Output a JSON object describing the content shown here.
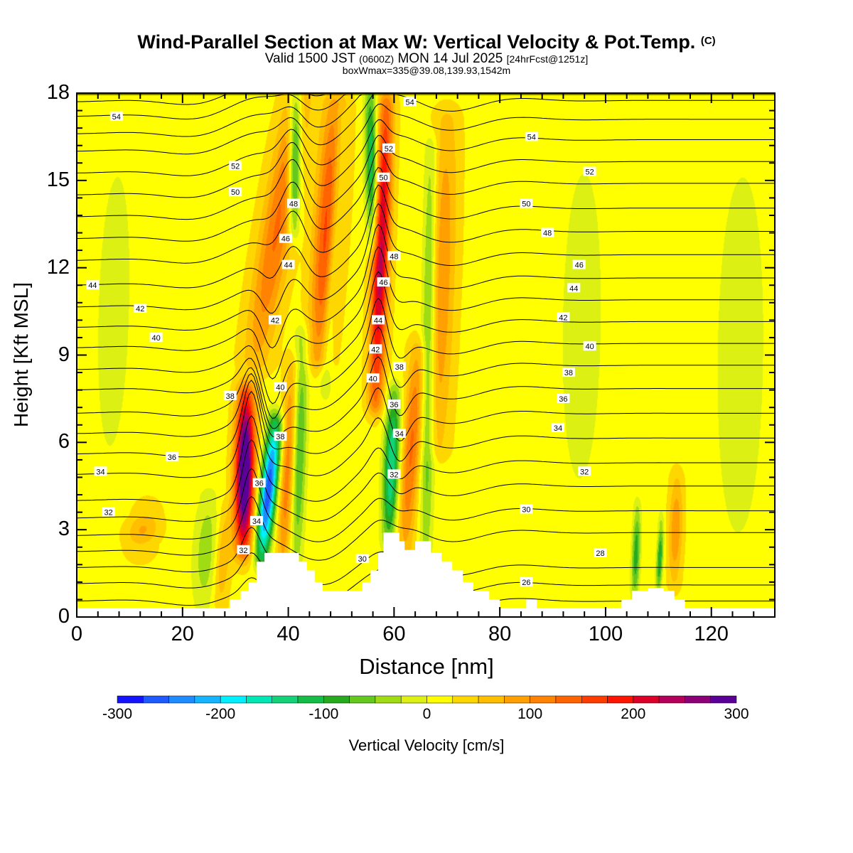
{
  "title": {
    "main": "Wind-Parallel Section at Max W: Vertical Velocity & Pot.Temp.",
    "copyright": "(C)",
    "valid_prefix": "Valid 1500 JST",
    "valid_utc": "(0600Z)",
    "valid_date": "MON 14 Jul 2025",
    "forecast": "[24hrFcst@1251z]",
    "boxmax": "boxWmax=335@39.08,139.93,1542m"
  },
  "chart_data": {
    "type": "heatmap",
    "xlabel": "Distance [nm]",
    "ylabel": "Height [Kft MSL]",
    "xlim": [
      0,
      132
    ],
    "ylim": [
      0,
      18
    ],
    "x_ticks": [
      0,
      20,
      40,
      60,
      80,
      100,
      120
    ],
    "y_ticks": [
      0,
      3,
      6,
      9,
      12,
      15,
      18
    ],
    "colorbar": {
      "label": "Vertical Velocity [cm/s]",
      "range": [
        -300,
        300
      ],
      "tick_labels": [
        "-300",
        "-200",
        "-100",
        "0",
        "100",
        "200",
        "300"
      ],
      "colors": [
        "#1414ff",
        "#1e5aff",
        "#1e8cff",
        "#14b4ff",
        "#00f0ff",
        "#00e6b4",
        "#14d278",
        "#14be46",
        "#28aa1e",
        "#64c81e",
        "#a0dc14",
        "#dcf014",
        "#ffff00",
        "#ffd700",
        "#ffbe00",
        "#ffa000",
        "#ff8200",
        "#ff6400",
        "#ff3c00",
        "#ff1400",
        "#dc0028",
        "#b4005a",
        "#8c0078",
        "#5a0096"
      ]
    },
    "terrain": [
      [
        0,
        0.3
      ],
      [
        29,
        0.3
      ],
      [
        29,
        0.6
      ],
      [
        31,
        0.6
      ],
      [
        31,
        0.9
      ],
      [
        32.5,
        0.9
      ],
      [
        32.5,
        1.2
      ],
      [
        34,
        1.2
      ],
      [
        34,
        1.9
      ],
      [
        35.5,
        1.9
      ],
      [
        35.5,
        2.2
      ],
      [
        42,
        2.2
      ],
      [
        42,
        1.9
      ],
      [
        43.5,
        1.9
      ],
      [
        43.5,
        1.6
      ],
      [
        45,
        1.6
      ],
      [
        45,
        1.2
      ],
      [
        46.5,
        1.2
      ],
      [
        46.5,
        0.9
      ],
      [
        54,
        0.9
      ],
      [
        54,
        1.2
      ],
      [
        55.5,
        1.2
      ],
      [
        55.5,
        1.6
      ],
      [
        57,
        1.6
      ],
      [
        57,
        2.2
      ],
      [
        58,
        2.2
      ],
      [
        58,
        2.9
      ],
      [
        61,
        2.9
      ],
      [
        61,
        2.6
      ],
      [
        62,
        2.6
      ],
      [
        62,
        2.3
      ],
      [
        64,
        2.3
      ],
      [
        64,
        2.6
      ],
      [
        67,
        2.6
      ],
      [
        67,
        2.2
      ],
      [
        69,
        2.2
      ],
      [
        69,
        1.9
      ],
      [
        71,
        1.9
      ],
      [
        71,
        1.6
      ],
      [
        73,
        1.6
      ],
      [
        73,
        1.2
      ],
      [
        75,
        1.2
      ],
      [
        75,
        0.9
      ],
      [
        78,
        0.9
      ],
      [
        78,
        0.6
      ],
      [
        80,
        0.6
      ],
      [
        80,
        0.3
      ],
      [
        85,
        0.3
      ],
      [
        85,
        0.6
      ],
      [
        87,
        0.6
      ],
      [
        87,
        0.3
      ],
      [
        103,
        0.3
      ],
      [
        103,
        0.6
      ],
      [
        105,
        0.6
      ],
      [
        105,
        0.9
      ],
      [
        108,
        0.9
      ],
      [
        108,
        1.0
      ],
      [
        111,
        1.0
      ],
      [
        111,
        0.9
      ],
      [
        113,
        0.9
      ],
      [
        113,
        0.6
      ],
      [
        115,
        0.6
      ],
      [
        115,
        0.3
      ],
      [
        132,
        0.3
      ]
    ],
    "w_features": [
      {
        "x": 31.5,
        "x_top": 32.0,
        "y0": 2.5,
        "y1": 7.5,
        "w": 320,
        "width": 1.8
      },
      {
        "x": 35.0,
        "x_top": 37.5,
        "y0": 2.2,
        "y1": 6.5,
        "w": -290,
        "width": 1.6
      },
      {
        "x": 39.0,
        "x_top": 41.0,
        "y0": 2.0,
        "y1": 8.5,
        "w": 110,
        "width": 1.5
      },
      {
        "x": 34.0,
        "x_top": 42.0,
        "y0": 9.0,
        "y1": 18.0,
        "w": 110,
        "width": 3.0
      },
      {
        "x": 41.5,
        "x_top": 42.5,
        "y0": 2.3,
        "y1": 9.5,
        "w": -110,
        "width": 1.4
      },
      {
        "x": 41.0,
        "x_top": 41.5,
        "y0": 13.5,
        "y1": 18.0,
        "w": -170,
        "width": 1.2
      },
      {
        "x": 46.0,
        "x_top": 49.0,
        "y0": 9.0,
        "y1": 17.5,
        "w": 150,
        "width": 2.5
      },
      {
        "x": 47.0,
        "x_top": 50.0,
        "y0": 8.0,
        "y1": 17.0,
        "w": -80,
        "width": 1.2
      },
      {
        "x": 56.5,
        "x_top": 58.5,
        "y0": 7.5,
        "y1": 17.5,
        "w": 220,
        "width": 1.6
      },
      {
        "x": 56.0,
        "x_top": 55.5,
        "y0": 13.0,
        "y1": 18.0,
        "w": -150,
        "width": 1.2
      },
      {
        "x": 59.0,
        "x_top": 60.0,
        "y0": 2.8,
        "y1": 7.5,
        "w": -170,
        "width": 1.5
      },
      {
        "x": 62.0,
        "x_top": 64.5,
        "y0": 2.5,
        "y1": 9.0,
        "w": 110,
        "width": 1.8
      },
      {
        "x": 66.0,
        "x_top": 67.0,
        "y0": 2.5,
        "y1": 16.0,
        "w": -100,
        "width": 1.3
      },
      {
        "x": 68.0,
        "x_top": 70.0,
        "y0": 6.0,
        "y1": 17.0,
        "w": 80,
        "width": 2.5
      },
      {
        "x": 24.0,
        "x_top": 25.0,
        "y0": 0.5,
        "y1": 4.0,
        "w": -60,
        "width": 2.5
      },
      {
        "x": 27.0,
        "x_top": 28.0,
        "y0": 0.5,
        "y1": 3.5,
        "w": 60,
        "width": 1.5
      },
      {
        "x": 12.0,
        "x_top": 13.0,
        "y0": 2.5,
        "y1": 3.5,
        "w": 60,
        "width": 3.0
      },
      {
        "x": 105.5,
        "x_top": 106.0,
        "y0": 0.8,
        "y1": 3.5,
        "w": -110,
        "width": 0.8
      },
      {
        "x": 110.0,
        "x_top": 110.5,
        "y0": 1.0,
        "y1": 3.0,
        "w": -120,
        "width": 0.6
      },
      {
        "x": 113.0,
        "x_top": 113.5,
        "y0": 1.5,
        "y1": 4.5,
        "w": 80,
        "width": 1.3
      },
      {
        "x": 95.0,
        "x_top": 96.0,
        "y0": 4.0,
        "y1": 16.0,
        "w": -30,
        "width": 5.0
      },
      {
        "x": 125.0,
        "x_top": 126.0,
        "y0": 2.0,
        "y1": 16.0,
        "w": -30,
        "width": 6.0
      },
      {
        "x": 6.0,
        "x_top": 8.0,
        "y0": 4.0,
        "y1": 17.0,
        "w": -25,
        "width": 5.0
      }
    ],
    "theta_contours": {
      "levels": [
        26,
        27,
        28,
        29,
        30,
        31,
        32,
        33,
        34,
        35,
        36,
        37,
        38,
        39,
        40,
        41,
        42,
        43,
        44,
        45,
        46,
        47,
        48,
        49,
        50,
        51,
        52,
        53,
        54,
        55
      ],
      "left_heights": [
        0.1,
        0.55,
        1.15,
        1.7,
        2.25,
        2.8,
        3.4,
        4.0,
        4.9,
        5.6,
        6.3,
        7.0,
        7.8,
        8.5,
        9.25,
        9.95,
        10.65,
        11.4,
        12.25,
        13.0,
        13.75,
        14.5,
        15.25,
        16.0,
        16.6,
        17.2,
        17.7,
        18.2,
        18.6,
        18.95
      ],
      "right_heights": [
        0.1,
        0.55,
        1.1,
        1.7,
        2.9,
        3.65,
        4.5,
        5.3,
        6.15,
        7.0,
        7.85,
        8.65,
        9.4,
        10.15,
        10.9,
        11.65,
        12.45,
        13.25,
        14.05,
        14.9,
        15.65,
        16.4,
        17.1,
        17.75,
        18.4,
        19.0,
        19.5,
        20.0,
        20.4,
        20.8
      ]
    },
    "contour_labels": [
      {
        "text": "54",
        "x": 7.5,
        "y": 17.2
      },
      {
        "text": "52",
        "x": 30,
        "y": 15.5
      },
      {
        "text": "50",
        "x": 30,
        "y": 14.6
      },
      {
        "text": "48",
        "x": 41,
        "y": 14.2
      },
      {
        "text": "46",
        "x": 39.5,
        "y": 13.0
      },
      {
        "text": "44",
        "x": 40,
        "y": 12.1
      },
      {
        "text": "44",
        "x": 3,
        "y": 11.4
      },
      {
        "text": "42",
        "x": 12,
        "y": 10.6
      },
      {
        "text": "42",
        "x": 37.5,
        "y": 10.2
      },
      {
        "text": "40",
        "x": 15,
        "y": 9.6
      },
      {
        "text": "38",
        "x": 29,
        "y": 7.6
      },
      {
        "text": "40",
        "x": 38.5,
        "y": 7.9
      },
      {
        "text": "38",
        "x": 38.5,
        "y": 6.2
      },
      {
        "text": "36",
        "x": 18,
        "y": 5.5
      },
      {
        "text": "34",
        "x": 4.5,
        "y": 5.0
      },
      {
        "text": "36",
        "x": 34.5,
        "y": 4.6
      },
      {
        "text": "32",
        "x": 6,
        "y": 3.6
      },
      {
        "text": "34",
        "x": 34,
        "y": 3.3
      },
      {
        "text": "32",
        "x": 31.5,
        "y": 2.3
      },
      {
        "text": "30",
        "x": 54,
        "y": 2.0
      },
      {
        "text": "54",
        "x": 63,
        "y": 17.7
      },
      {
        "text": "52",
        "x": 59,
        "y": 16.1
      },
      {
        "text": "50",
        "x": 58,
        "y": 15.1
      },
      {
        "text": "48",
        "x": 60,
        "y": 12.4
      },
      {
        "text": "46",
        "x": 58,
        "y": 11.5
      },
      {
        "text": "44",
        "x": 57,
        "y": 10.2
      },
      {
        "text": "42",
        "x": 56.5,
        "y": 9.2
      },
      {
        "text": "40",
        "x": 56,
        "y": 8.2
      },
      {
        "text": "38",
        "x": 61,
        "y": 8.6
      },
      {
        "text": "36",
        "x": 60,
        "y": 7.3
      },
      {
        "text": "34",
        "x": 61,
        "y": 6.3
      },
      {
        "text": "32",
        "x": 60,
        "y": 4.9
      },
      {
        "text": "54",
        "x": 86,
        "y": 16.5
      },
      {
        "text": "52",
        "x": 97,
        "y": 15.3
      },
      {
        "text": "50",
        "x": 85,
        "y": 14.2
      },
      {
        "text": "48",
        "x": 89,
        "y": 13.2
      },
      {
        "text": "46",
        "x": 95,
        "y": 12.1
      },
      {
        "text": "44",
        "x": 94,
        "y": 11.3
      },
      {
        "text": "42",
        "x": 92,
        "y": 10.3
      },
      {
        "text": "40",
        "x": 97,
        "y": 9.3
      },
      {
        "text": "38",
        "x": 93,
        "y": 8.4
      },
      {
        "text": "36",
        "x": 92,
        "y": 7.5
      },
      {
        "text": "34",
        "x": 91,
        "y": 6.5
      },
      {
        "text": "32",
        "x": 96,
        "y": 5.0
      },
      {
        "text": "30",
        "x": 85,
        "y": 3.7
      },
      {
        "text": "28",
        "x": 99,
        "y": 2.2
      },
      {
        "text": "26",
        "x": 85,
        "y": 1.2
      }
    ]
  }
}
